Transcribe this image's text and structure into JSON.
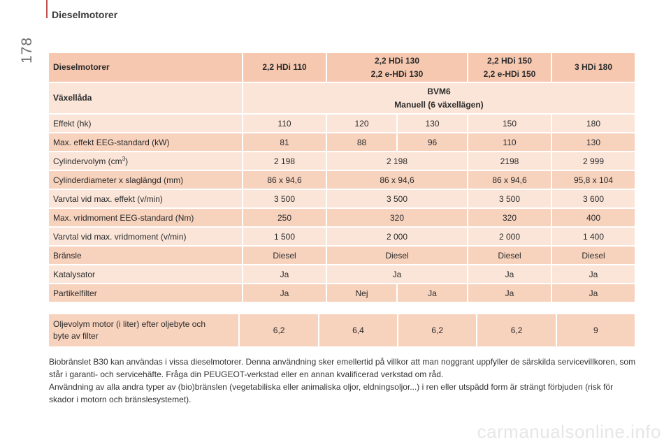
{
  "page": {
    "number": "178",
    "section_title": "Dieselmotorer"
  },
  "table": {
    "header": {
      "label": "Dieselmotorer",
      "cols": [
        [
          "2,2 HDi 110"
        ],
        [
          "2,2 HDi 130",
          "2,2 e-HDi 130"
        ],
        [
          "2,2 HDi 150",
          "2,2 e-HDi 150"
        ],
        [
          "3 HDi 180"
        ]
      ]
    },
    "gearbox": {
      "label": "Växellåda",
      "value_line1": "BVM6",
      "value_line2": "Manuell (6 växellägen)"
    },
    "rows": {
      "effekt": {
        "label": "Effekt (hk)",
        "v": [
          "110",
          "120",
          "130",
          "150",
          "180"
        ]
      },
      "max_effekt": {
        "label": "Max. effekt EEG-standard (kW)",
        "v": [
          "81",
          "88",
          "96",
          "110",
          "130"
        ]
      },
      "cylindervolym": {
        "label": "Cylindervolym (cm",
        "sup": "3",
        "label_end": ")",
        "v": [
          "2 198",
          "2 198",
          "2198",
          "2 999"
        ]
      },
      "cylinderdiameter": {
        "label": "Cylinderdiameter x slaglängd (mm)",
        "v": [
          "86 x 94,6",
          "86 x 94,6",
          "86 x 94,6",
          "95,8 x 104"
        ]
      },
      "varvtal_effekt": {
        "label": "Varvtal vid max. effekt (v/min)",
        "v": [
          "3 500",
          "3 500",
          "3 500",
          "3 600"
        ]
      },
      "vridmoment": {
        "label": "Max. vridmoment EEG-standard (Nm)",
        "v": [
          "250",
          "320",
          "320",
          "400"
        ]
      },
      "varvtal_vridmoment": {
        "label": "Varvtal vid max. vridmoment (v/min)",
        "v": [
          "1 500",
          "2 000",
          "2 000",
          "1 400"
        ]
      },
      "bransle": {
        "label": "Bränsle",
        "v": [
          "Diesel",
          "Diesel",
          "Diesel",
          "Diesel"
        ]
      },
      "katalysator": {
        "label": "Katalysator",
        "v": [
          "Ja",
          "Ja",
          "Ja",
          "Ja"
        ]
      },
      "partikelfilter": {
        "label": "Partikelfilter",
        "v": [
          "Ja",
          "Nej",
          "Ja",
          "Ja",
          "Ja"
        ]
      }
    }
  },
  "oil": {
    "label_line1": "Oljevolym motor (i liter) efter oljebyte och",
    "label_line2": "byte av filter",
    "v": [
      "6,2",
      "6,4",
      "6,2",
      "6,2",
      "9"
    ]
  },
  "paragraphs": [
    "Biobränslet B30 kan användas i vissa dieselmotorer. Denna användning sker emellertid på villkor att man noggrant uppfyller de särskilda servicevillkoren, som står i garanti- och servicehäfte. Fråga din PEUGEOT-verkstad eller en annan kvalificerad verkstad om råd.",
    "Användning av alla andra typer av (bio)bränslen (vegetabiliska eller animaliska oljor, eldningsoljor...) i ren eller utspädd form är strängt förbjuden (risk för skador i motorn och bränslesystemet)."
  ],
  "watermark": "carmanualsonline.info"
}
